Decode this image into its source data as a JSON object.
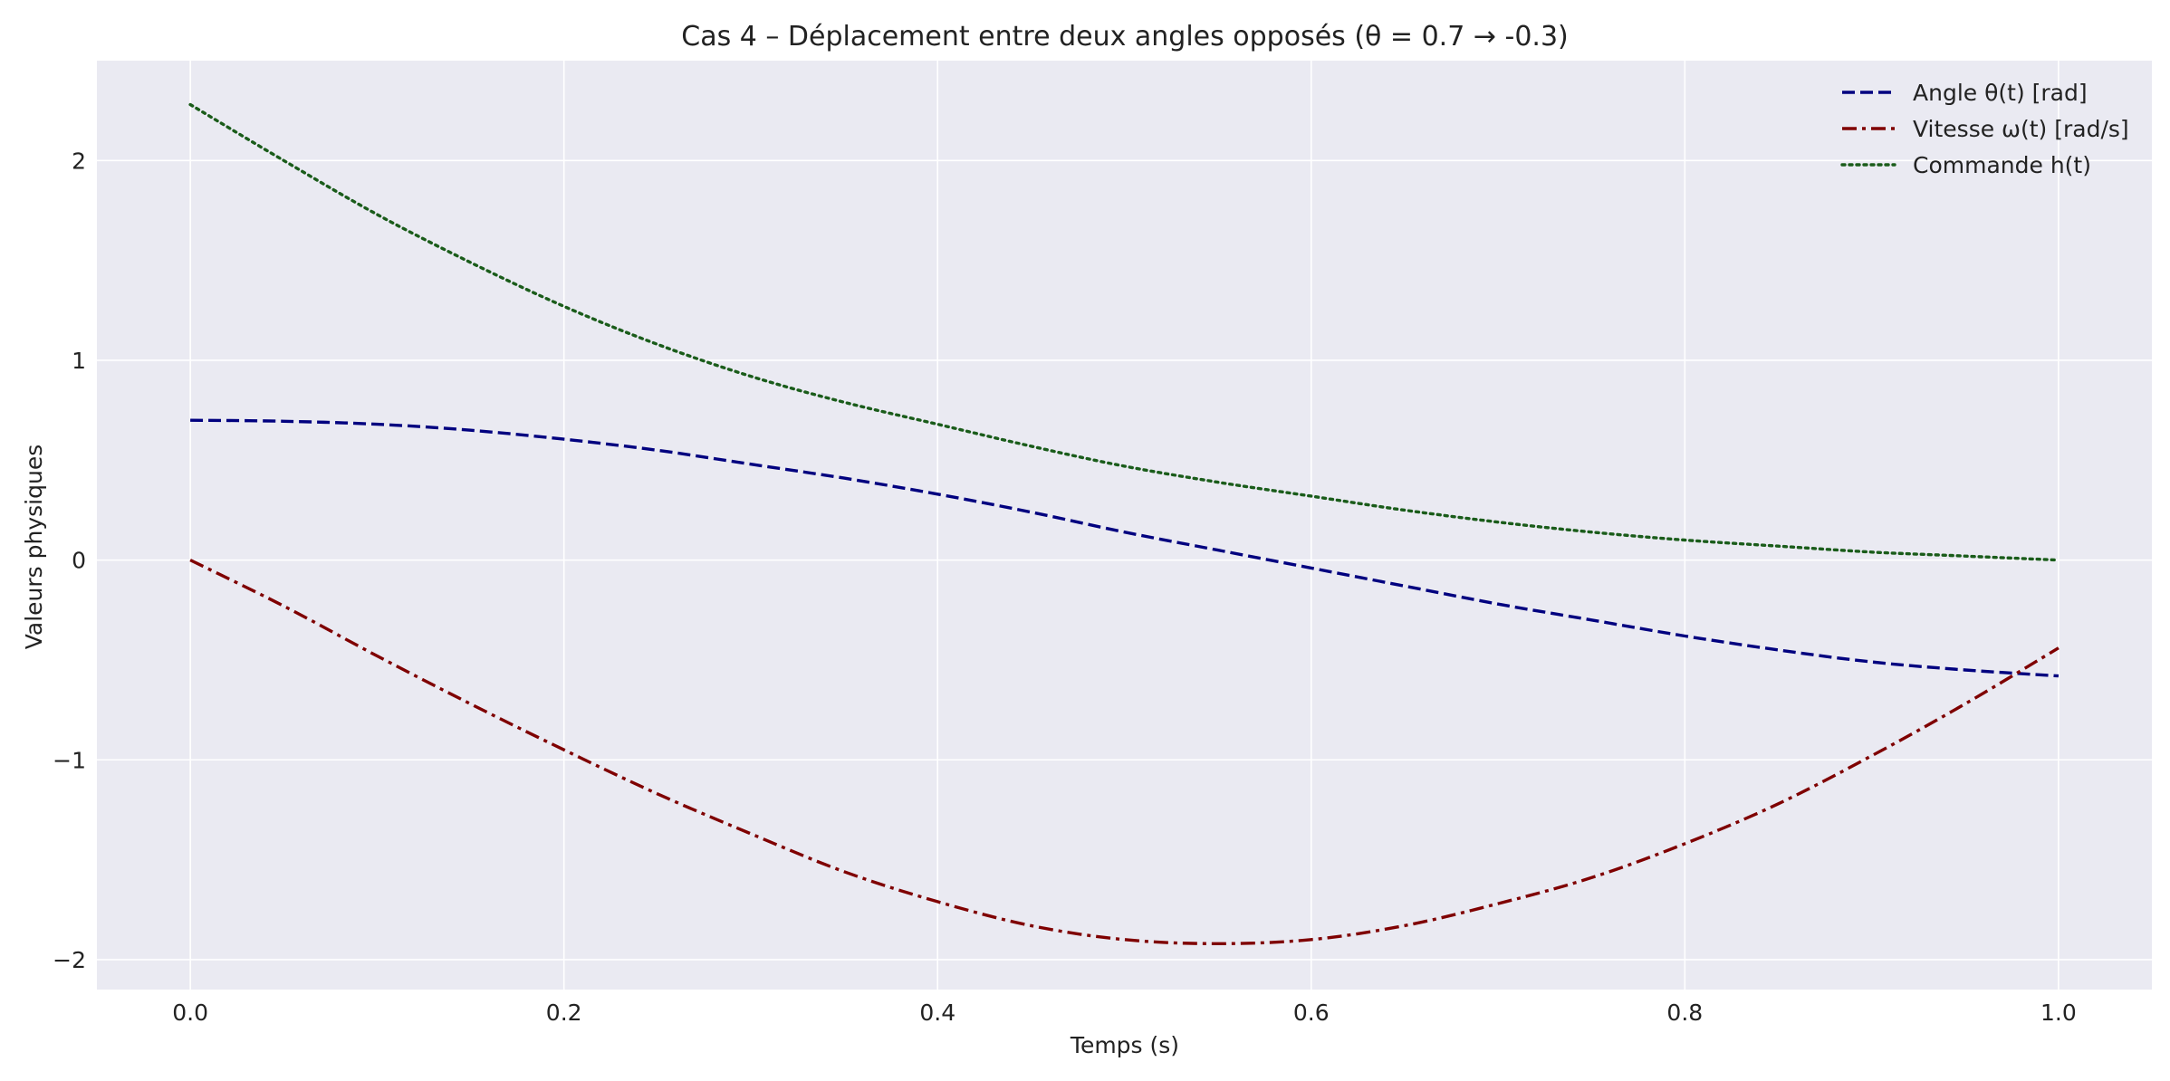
{
  "chart_data": {
    "type": "line",
    "title": "Cas 4 – Déplacement entre deux angles opposés (θ = 0.7 → -0.3)",
    "xlabel": "Temps (s)",
    "ylabel": "Valeurs physiques",
    "xlim": [
      -0.05,
      1.05
    ],
    "ylim": [
      -2.15,
      2.5
    ],
    "xticks": [
      0.0,
      0.2,
      0.4,
      0.6,
      0.8,
      1.0
    ],
    "xtick_labels": [
      "0.0",
      "0.2",
      "0.4",
      "0.6",
      "0.8",
      "1.0"
    ],
    "yticks": [
      -2,
      -1,
      0,
      1,
      2
    ],
    "ytick_labels": [
      "−2",
      "−1",
      "0",
      "1",
      "2"
    ],
    "grid": true,
    "legend_position": "top-right",
    "background": "#eaeaf2",
    "series": [
      {
        "name": "Angle θ(t) [rad]",
        "color": "#00007f",
        "style": "dashed",
        "x": [
          0.0,
          0.05,
          0.1,
          0.15,
          0.2,
          0.25,
          0.3,
          0.35,
          0.4,
          0.45,
          0.5,
          0.55,
          0.6,
          0.65,
          0.7,
          0.75,
          0.8,
          0.85,
          0.9,
          0.95,
          1.0
        ],
        "y": [
          0.7,
          0.695,
          0.68,
          0.65,
          0.605,
          0.55,
          0.48,
          0.41,
          0.33,
          0.24,
          0.14,
          0.05,
          -0.04,
          -0.13,
          -0.22,
          -0.3,
          -0.38,
          -0.45,
          -0.51,
          -0.55,
          -0.58
        ]
      },
      {
        "name": "Vitesse ω(t) [rad/s]",
        "color": "#7f0000",
        "style": "dashdot",
        "x": [
          0.0,
          0.05,
          0.1,
          0.15,
          0.2,
          0.25,
          0.3,
          0.35,
          0.4,
          0.45,
          0.5,
          0.55,
          0.6,
          0.65,
          0.7,
          0.75,
          0.8,
          0.85,
          0.9,
          0.95,
          1.0
        ],
        "y": [
          0.0,
          -0.23,
          -0.48,
          -0.72,
          -0.95,
          -1.17,
          -1.37,
          -1.56,
          -1.71,
          -1.83,
          -1.9,
          -1.92,
          -1.9,
          -1.83,
          -1.72,
          -1.59,
          -1.42,
          -1.22,
          -0.98,
          -0.72,
          -0.44
        ]
      },
      {
        "name": "Commande h(t)",
        "color": "#1a5c1a",
        "style": "dotted",
        "x": [
          0.0,
          0.05,
          0.1,
          0.15,
          0.2,
          0.25,
          0.3,
          0.35,
          0.4,
          0.45,
          0.5,
          0.55,
          0.6,
          0.65,
          0.7,
          0.75,
          0.8,
          0.85,
          0.9,
          0.95,
          1.0
        ],
        "y": [
          2.28,
          2.0,
          1.73,
          1.49,
          1.27,
          1.08,
          0.92,
          0.79,
          0.68,
          0.57,
          0.47,
          0.39,
          0.32,
          0.25,
          0.19,
          0.14,
          0.1,
          0.07,
          0.04,
          0.02,
          0.0
        ]
      }
    ]
  }
}
